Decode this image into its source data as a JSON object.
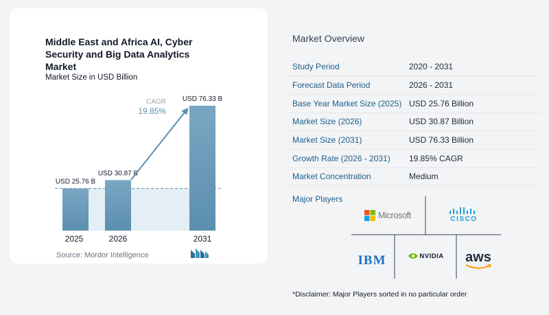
{
  "chart": {
    "title": "Middle East and Africa AI, Cyber Security and Big Data Analytics Market",
    "subtitle": "Market Size in USD Billion",
    "cagr_label": "CAGR",
    "cagr_value": "19.85%",
    "source": "Source:  Mordor Intelligence"
  },
  "chart_data": {
    "type": "bar",
    "categories": [
      "2025",
      "2026",
      "2031"
    ],
    "values": [
      25.76,
      30.87,
      76.33
    ],
    "data_labels": [
      "USD 25.76 B",
      "USD 30.87 B",
      "USD 76.33 B"
    ],
    "title": "Middle East and Africa AI, Cyber Security and Big Data Analytics Market",
    "ylabel": "Market Size in USD Billion",
    "ylim": [
      0,
      80
    ],
    "annotation": "CAGR 19.85%",
    "colors": {
      "bar_top": "#7aa7c3",
      "bar_bottom": "#5b8fae",
      "shade": "#e3eef5",
      "arrow": "#5e8fb0"
    }
  },
  "overview": {
    "title": "Market Overview",
    "rows": [
      {
        "key": "Study Period",
        "value": "2020 - 2031"
      },
      {
        "key": "Forecast Data Period",
        "value": "2026 - 2031"
      },
      {
        "key": "Base Year Market Size (2025)",
        "value": "USD 25.76 Billion"
      },
      {
        "key": "Market Size (2026)",
        "value": "USD 30.87 Billion"
      },
      {
        "key": "Market Size (2031)",
        "value": "USD 76.33 Billion"
      },
      {
        "key": "Growth Rate (2026 - 2031)",
        "value": "19.85% CAGR"
      },
      {
        "key": "Market Concentration",
        "value": "Medium"
      }
    ]
  },
  "players": {
    "title": "Major Players",
    "names": [
      "Microsoft",
      "CISCO",
      "IBM",
      "NVIDIA",
      "aws"
    ],
    "disclaimer": "*Disclaimer: Major Players sorted in no particular order"
  }
}
